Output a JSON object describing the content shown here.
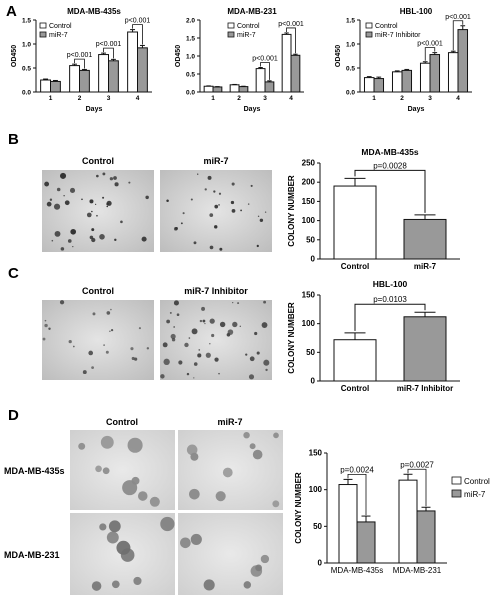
{
  "panels": {
    "A": "A",
    "B": "B",
    "C": "C",
    "D": "D"
  },
  "photo_labels": {
    "B_left": "Control",
    "B_right": "miR-7",
    "C_left": "Control",
    "C_right": "miR-7 Inhibitor",
    "D_col1": "Control",
    "D_col2": "miR-7",
    "D_row1": "MDA-MB-435s",
    "D_row2": "MDA-MB-231"
  },
  "colors": {
    "control": "#ffffff",
    "treated": "#999999",
    "stroke": "#111111"
  },
  "chart_data": [
    {
      "id": "A1",
      "type": "bar",
      "title": "MDA-MB-435s",
      "categories": [
        "1",
        "2",
        "3",
        "4"
      ],
      "xlabel": "Days",
      "ylabel": "OD450",
      "ylim": [
        0,
        1.5
      ],
      "yticks": [
        "0.0",
        "0.5",
        "1.0",
        "1.5"
      ],
      "series": [
        {
          "name": "Control",
          "values": [
            0.25,
            0.55,
            0.78,
            1.25
          ],
          "errors": [
            0.02,
            0.03,
            0.03,
            0.05
          ]
        },
        {
          "name": "miR-7",
          "values": [
            0.22,
            0.45,
            0.65,
            0.92
          ],
          "errors": [
            0.02,
            0.02,
            0.03,
            0.05
          ]
        }
      ],
      "annotations": [
        "p<0.001",
        "p<0.001",
        "p<0.001"
      ],
      "legend": "top-left"
    },
    {
      "id": "A2",
      "type": "bar",
      "title": "MDA-MB-231",
      "categories": [
        "1",
        "2",
        "3",
        "4"
      ],
      "xlabel": "Days",
      "ylabel": "OD450",
      "ylim": [
        0,
        2.0
      ],
      "yticks": [
        "0.0",
        "0.5",
        "1.0",
        "1.5",
        "2.0"
      ],
      "series": [
        {
          "name": "Control",
          "values": [
            0.16,
            0.2,
            0.65,
            1.6
          ],
          "errors": [
            0.01,
            0.01,
            0.03,
            0.04
          ]
        },
        {
          "name": "miR-7",
          "values": [
            0.14,
            0.15,
            0.28,
            1.02
          ],
          "errors": [
            0.01,
            0.01,
            0.03,
            0.03
          ]
        }
      ],
      "annotations": [
        "p<0.001",
        "p<0.001"
      ],
      "legend": "top-left"
    },
    {
      "id": "A3",
      "type": "bar",
      "title": "HBL-100",
      "categories": [
        "1",
        "2",
        "3",
        "4"
      ],
      "xlabel": "Days",
      "ylabel": "OD450",
      "ylim": [
        0,
        1.5
      ],
      "yticks": [
        "0.0",
        "0.5",
        "1.0",
        "1.5"
      ],
      "series": [
        {
          "name": "Control",
          "values": [
            0.3,
            0.42,
            0.6,
            0.82
          ],
          "errors": [
            0.02,
            0.02,
            0.03,
            0.03
          ]
        },
        {
          "name": "miR-7 Inhibitor",
          "values": [
            0.28,
            0.45,
            0.78,
            1.3
          ],
          "errors": [
            0.03,
            0.02,
            0.04,
            0.08
          ]
        }
      ],
      "annotations": [
        "p<0.001",
        "p<0.001"
      ],
      "legend": "top-left"
    },
    {
      "id": "B",
      "type": "bar",
      "title": "MDA-MB-435s",
      "categories": [
        "Control",
        "miR-7"
      ],
      "ylabel": "COLONY NUMBER",
      "ylim": [
        0,
        250
      ],
      "yticks": [
        "0",
        "50",
        "100",
        "150",
        "200",
        "250"
      ],
      "values": [
        190,
        103
      ],
      "errors": [
        20,
        12
      ],
      "annotations": [
        "p=0.0028"
      ]
    },
    {
      "id": "C",
      "type": "bar",
      "title": "HBL-100",
      "categories": [
        "Control",
        "miR-7 Inhibitor"
      ],
      "ylabel": "COLONY NUMBER",
      "ylim": [
        0,
        150
      ],
      "yticks": [
        "0",
        "50",
        "100",
        "150"
      ],
      "values": [
        72,
        112
      ],
      "errors": [
        12,
        8
      ],
      "annotations": [
        "p=0.0103"
      ]
    },
    {
      "id": "D",
      "type": "bar",
      "categories": [
        "MDA-MB-435s",
        "MDA-MB-231"
      ],
      "ylabel": "COLONY NUMBER",
      "ylim": [
        0,
        150
      ],
      "yticks": [
        "0",
        "50",
        "100",
        "150"
      ],
      "series": [
        {
          "name": "Control",
          "values": [
            107,
            113
          ],
          "errors": [
            7,
            8
          ]
        },
        {
          "name": "miR-7",
          "values": [
            56,
            71
          ],
          "errors": [
            8,
            5
          ]
        }
      ],
      "annotations": [
        "p=0.0024",
        "p=0.0027"
      ],
      "legend": "top-right"
    }
  ]
}
